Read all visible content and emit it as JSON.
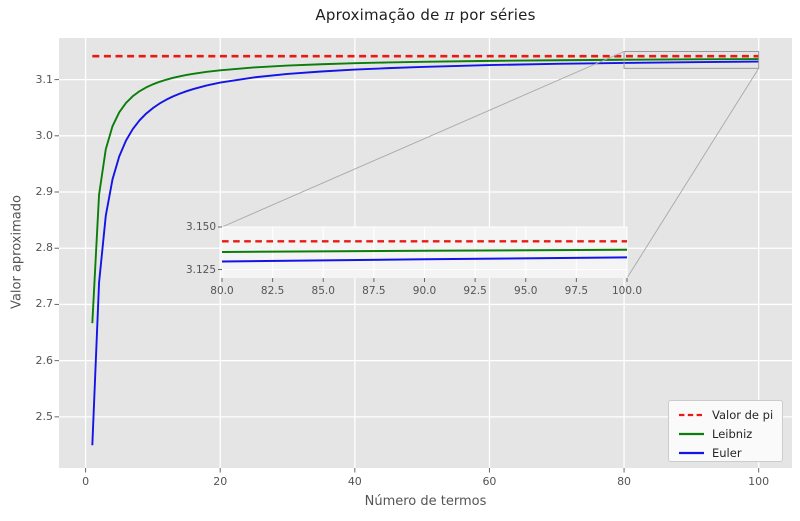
{
  "figure": {
    "title_prefix": "Aproximação de ",
    "title_pi": "π",
    "title_suffix": " por séries"
  },
  "colors": {
    "figure_bg": "#ffffff",
    "axes_bg": "#e5e5e5",
    "inset_bg": "#f4f4f4",
    "grid": "#ffffff",
    "tick_mark": "#666666",
    "tick_text": "#555555",
    "title_text": "#1f1f1f",
    "pi_line": "#ea1a12",
    "leibniz_line": "#0b7d0b",
    "euler_line": "#1414e8",
    "indicator": "#9a9a9a",
    "connector": "#a8a8a8",
    "legend_bg": "#fafafa",
    "legend_border": "#cccccc"
  },
  "chart_data": {
    "type": "line",
    "title": "Aproximação de π por séries",
    "xlabel": "Número de termos",
    "ylabel": "Valor aproximado",
    "xlim": [
      -3.95,
      104.95
    ],
    "ylim": [
      2.409,
      3.174
    ],
    "xticks": [
      0,
      20,
      40,
      60,
      80,
      100
    ],
    "xtick_labels": [
      "0",
      "20",
      "40",
      "60",
      "80",
      "100"
    ],
    "yticks": [
      2.5,
      2.6,
      2.7,
      2.8,
      2.9,
      3.0,
      3.1
    ],
    "ytick_labels": [
      "2.5",
      "2.6",
      "2.7",
      "2.8",
      "2.9",
      "3.0",
      "3.1"
    ],
    "grid": true,
    "legend_position": "lower right",
    "pi_value": 3.14159,
    "series": [
      {
        "name": "Valor de pi",
        "style": "dashed",
        "color_key": "pi_line",
        "x": [
          1,
          100
        ],
        "y": [
          3.14159,
          3.14159
        ]
      },
      {
        "name": "Leibniz",
        "style": "solid",
        "color_key": "leibniz_line",
        "x": [
          1,
          2,
          3,
          4,
          5,
          6,
          7,
          8,
          9,
          10,
          11,
          12,
          13,
          14,
          15,
          16,
          18,
          20,
          25,
          30,
          35,
          40,
          45,
          50,
          60,
          70,
          80,
          90,
          100
        ],
        "y": [
          2.6667,
          2.8952,
          2.976,
          3.0171,
          3.0418,
          3.0584,
          3.0703,
          3.0792,
          3.0861,
          3.0916,
          3.0961,
          3.0999,
          3.1031,
          3.1059,
          3.1083,
          3.1103,
          3.1138,
          3.1166,
          3.1216,
          3.1249,
          3.1273,
          3.1291,
          3.1305,
          3.1316,
          3.1333,
          3.1344,
          3.1353,
          3.136,
          3.1366
        ]
      },
      {
        "name": "Euler",
        "style": "solid",
        "color_key": "euler_line",
        "x": [
          1,
          2,
          3,
          4,
          5,
          6,
          7,
          8,
          9,
          10,
          11,
          12,
          13,
          14,
          15,
          16,
          18,
          20,
          25,
          30,
          35,
          40,
          45,
          50,
          60,
          70,
          80,
          90,
          100
        ],
        "y": [
          2.4495,
          2.7386,
          2.8578,
          2.9226,
          2.9634,
          2.9914,
          3.0118,
          3.0273,
          3.0395,
          3.0493,
          3.0575,
          3.0643,
          3.0701,
          3.0751,
          3.0794,
          3.0832,
          3.0896,
          3.0947,
          3.1039,
          3.1101,
          3.1144,
          3.1179,
          3.1204,
          3.1226,
          3.1258,
          3.128,
          3.1297,
          3.131,
          3.1321
        ]
      }
    ],
    "inset": {
      "xlim": [
        80,
        100
      ],
      "ylim": [
        3.12,
        3.15
      ],
      "xticks": [
        80.0,
        82.5,
        85.0,
        87.5,
        90.0,
        92.5,
        95.0,
        97.5,
        100.0
      ],
      "xtick_labels": [
        "80.0",
        "82.5",
        "85.0",
        "87.5",
        "90.0",
        "92.5",
        "95.0",
        "97.5",
        "100.0"
      ],
      "yticks": [
        3.125,
        3.15
      ],
      "ytick_labels": [
        "3.125",
        "3.150"
      ]
    },
    "legend": [
      "Valor de pi",
      "Leibniz",
      "Euler"
    ]
  }
}
